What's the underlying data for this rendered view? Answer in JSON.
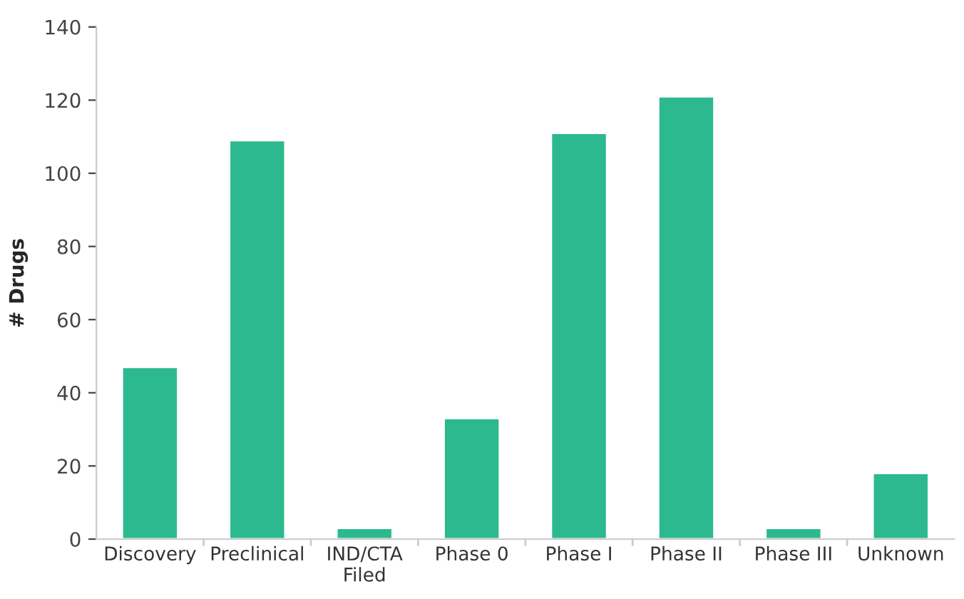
{
  "chart_data": {
    "type": "bar",
    "ylabel": "# Drugs",
    "categories": [
      "Discovery",
      "Preclinical",
      "IND/CTA\nFiled",
      "Phase 0",
      "Phase I",
      "Phase II",
      "Phase III",
      "Unknown"
    ],
    "values": [
      47,
      109,
      3,
      33,
      111,
      121,
      3,
      18
    ],
    "color": "#2db990",
    "ylim": [
      0,
      140
    ],
    "yticks": [
      0,
      20,
      40,
      60,
      80,
      100,
      120,
      140
    ],
    "grid": false,
    "legend": false
  }
}
